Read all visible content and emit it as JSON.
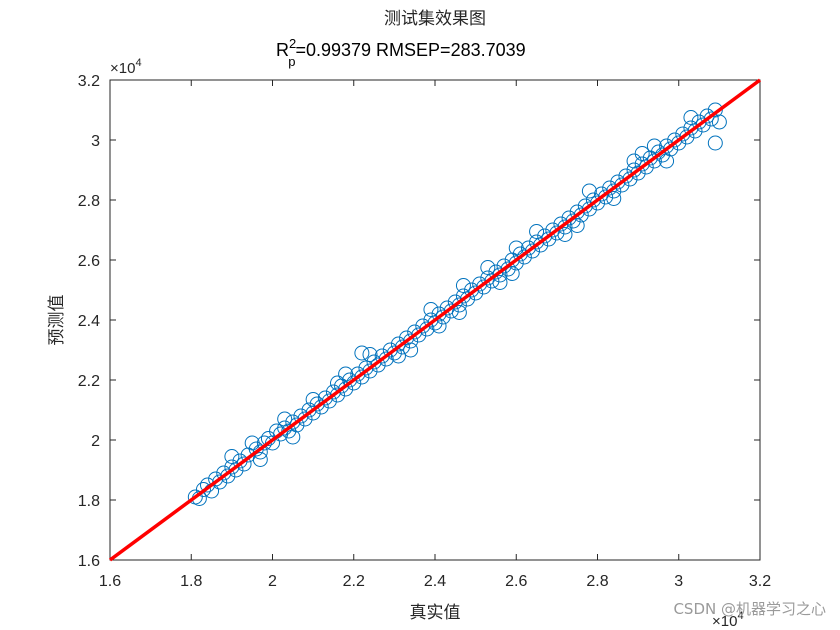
{
  "colors": {
    "points": "#0072BD",
    "fit_line": "#FF0000",
    "axes": "#262626",
    "watermark": "#9a9a9a"
  },
  "chart_data": {
    "type": "scatter",
    "title": "测试集效果图",
    "subtitle": {
      "r": "R",
      "sup": "2",
      "sub": "p",
      "rest": "=0.99379  RMSEP=283.7039"
    },
    "xlabel": "真实值",
    "ylabel": "预测值",
    "xlim": [
      16000,
      32000
    ],
    "ylim": [
      16000,
      32000
    ],
    "x_ticks": [
      16000,
      18000,
      20000,
      22000,
      24000,
      26000,
      28000,
      30000,
      32000
    ],
    "y_ticks": [
      16000,
      18000,
      20000,
      22000,
      24000,
      26000,
      28000,
      30000,
      32000
    ],
    "x_tick_labels": [
      "1.6",
      "1.8",
      "2",
      "2.2",
      "2.4",
      "2.6",
      "2.8",
      "3",
      "3.2"
    ],
    "y_tick_labels": [
      "1.6",
      "1.8",
      "2",
      "2.2",
      "2.4",
      "2.6",
      "2.8",
      "3",
      "3.2"
    ],
    "x_exponent": {
      "base": "×10",
      "power": "4"
    },
    "y_exponent": {
      "base": "×10",
      "power": "4"
    },
    "marker": "circle-open",
    "grid": false,
    "reference_line": {
      "x": [
        16000,
        32000
      ],
      "y": [
        16000,
        32000
      ]
    },
    "x_range_of_points": [
      18100,
      31000
    ],
    "series": [
      {
        "values": [
          [
            18100,
            18100
          ],
          [
            18200,
            18050
          ],
          [
            18300,
            18350
          ],
          [
            18400,
            18500
          ],
          [
            18500,
            18300
          ],
          [
            18600,
            18700
          ],
          [
            18700,
            18600
          ],
          [
            18800,
            18900
          ],
          [
            18900,
            18800
          ],
          [
            19000,
            19100
          ],
          [
            19100,
            19000
          ],
          [
            19200,
            19300
          ],
          [
            19300,
            19200
          ],
          [
            19400,
            19500
          ],
          [
            19500,
            19900
          ],
          [
            19600,
            19700
          ],
          [
            19700,
            19600
          ],
          [
            19800,
            19900
          ],
          [
            19900,
            20050
          ],
          [
            20000,
            19900
          ],
          [
            20100,
            20300
          ],
          [
            20200,
            20200
          ],
          [
            20300,
            20400
          ],
          [
            20400,
            20300
          ],
          [
            20500,
            20600
          ],
          [
            20600,
            20500
          ],
          [
            20700,
            20800
          ],
          [
            20800,
            20700
          ],
          [
            20900,
            21000
          ],
          [
            21000,
            20900
          ],
          [
            21100,
            21200
          ],
          [
            21200,
            21100
          ],
          [
            21300,
            21400
          ],
          [
            21400,
            21300
          ],
          [
            21500,
            21600
          ],
          [
            21600,
            21500
          ],
          [
            21700,
            21800
          ],
          [
            21800,
            21700
          ],
          [
            21900,
            22000
          ],
          [
            22000,
            21900
          ],
          [
            22100,
            22200
          ],
          [
            22200,
            22100
          ],
          [
            22300,
            22400
          ],
          [
            22400,
            22300
          ],
          [
            22500,
            22600
          ],
          [
            22600,
            22500
          ],
          [
            22700,
            22800
          ],
          [
            22800,
            22700
          ],
          [
            22900,
            23000
          ],
          [
            23000,
            22900
          ],
          [
            23100,
            23200
          ],
          [
            23200,
            23100
          ],
          [
            23300,
            23400
          ],
          [
            23400,
            23300
          ],
          [
            23500,
            23600
          ],
          [
            23600,
            23500
          ],
          [
            23700,
            23800
          ],
          [
            23800,
            23700
          ],
          [
            23900,
            24000
          ],
          [
            24000,
            23900
          ],
          [
            24100,
            24200
          ],
          [
            24200,
            24100
          ],
          [
            24300,
            24400
          ],
          [
            24400,
            24300
          ],
          [
            24500,
            24600
          ],
          [
            24600,
            24500
          ],
          [
            24700,
            24800
          ],
          [
            24800,
            24700
          ],
          [
            24900,
            25000
          ],
          [
            25000,
            24900
          ],
          [
            25100,
            25200
          ],
          [
            25200,
            25100
          ],
          [
            25300,
            25400
          ],
          [
            25400,
            25300
          ],
          [
            25500,
            25600
          ],
          [
            25600,
            25500
          ],
          [
            25700,
            25800
          ],
          [
            25800,
            25700
          ],
          [
            25900,
            26000
          ],
          [
            26000,
            25900
          ],
          [
            26100,
            26200
          ],
          [
            26200,
            26100
          ],
          [
            26300,
            26400
          ],
          [
            26400,
            26300
          ],
          [
            26500,
            26600
          ],
          [
            26600,
            26500
          ],
          [
            26700,
            26800
          ],
          [
            26800,
            26700
          ],
          [
            26900,
            27000
          ],
          [
            27000,
            26900
          ],
          [
            27100,
            27200
          ],
          [
            27200,
            27100
          ],
          [
            27300,
            27400
          ],
          [
            27400,
            27300
          ],
          [
            27500,
            27600
          ],
          [
            27600,
            27500
          ],
          [
            27700,
            27800
          ],
          [
            27800,
            27700
          ],
          [
            27900,
            28000
          ],
          [
            28000,
            27900
          ],
          [
            28100,
            28200
          ],
          [
            28200,
            28100
          ],
          [
            28300,
            28400
          ],
          [
            28400,
            28300
          ],
          [
            28500,
            28600
          ],
          [
            28600,
            28500
          ],
          [
            28700,
            28800
          ],
          [
            28800,
            28700
          ],
          [
            28900,
            29000
          ],
          [
            29000,
            28900
          ],
          [
            29100,
            29200
          ],
          [
            29200,
            29100
          ],
          [
            29300,
            29400
          ],
          [
            29400,
            29300
          ],
          [
            29500,
            29600
          ],
          [
            29600,
            29500
          ],
          [
            29700,
            29800
          ],
          [
            29800,
            29700
          ],
          [
            29900,
            30000
          ],
          [
            30000,
            29900
          ],
          [
            30100,
            30200
          ],
          [
            30200,
            30100
          ],
          [
            30300,
            30400
          ],
          [
            30400,
            30300
          ],
          [
            30500,
            30600
          ],
          [
            30600,
            30500
          ],
          [
            30700,
            30800
          ],
          [
            30800,
            30700
          ],
          [
            30900,
            31000
          ],
          [
            31000,
            30600
          ],
          [
            20500,
            20100
          ],
          [
            21000,
            21350
          ],
          [
            21600,
            21900
          ],
          [
            22400,
            22850
          ],
          [
            23100,
            22800
          ],
          [
            23900,
            24350
          ],
          [
            24600,
            24250
          ],
          [
            25300,
            25750
          ],
          [
            25900,
            25550
          ],
          [
            26500,
            26950
          ],
          [
            27200,
            26850
          ],
          [
            27800,
            28300
          ],
          [
            28400,
            28050
          ],
          [
            29100,
            29550
          ],
          [
            29700,
            29300
          ],
          [
            30300,
            30750
          ],
          [
            19000,
            19450
          ],
          [
            19700,
            19350
          ],
          [
            30900,
            29900
          ],
          [
            22200,
            22900
          ],
          [
            24700,
            25150
          ],
          [
            27500,
            27150
          ],
          [
            28900,
            29300
          ],
          [
            26000,
            26400
          ],
          [
            23400,
            23000
          ],
          [
            21800,
            22200
          ],
          [
            20300,
            20700
          ],
          [
            29400,
            29800
          ],
          [
            25600,
            25250
          ],
          [
            24100,
            23800
          ]
        ]
      }
    ]
  },
  "watermark": "CSDN @机器学习之心"
}
